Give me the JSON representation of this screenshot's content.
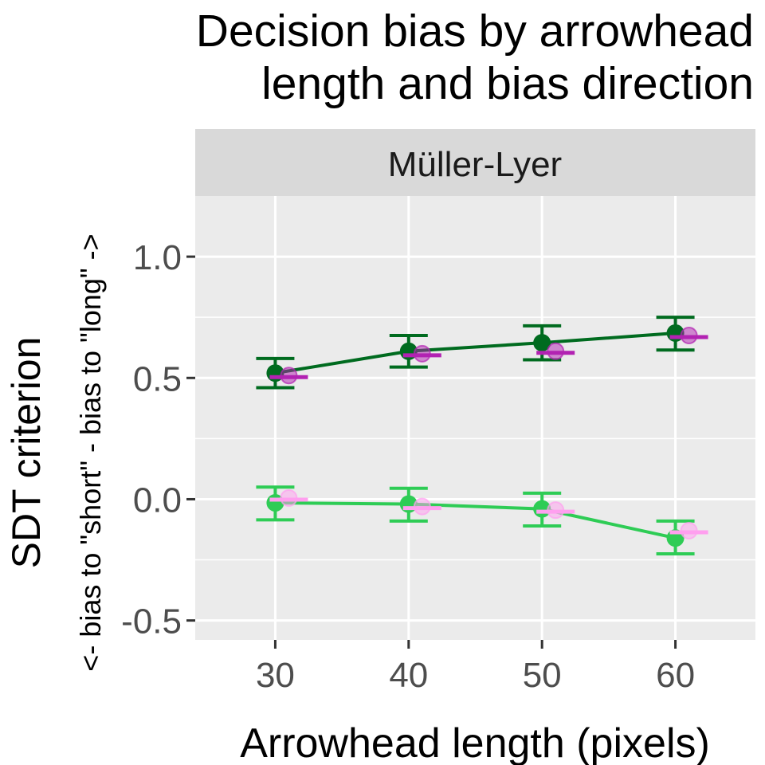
{
  "chart_data": {
    "type": "line",
    "title": [
      "Decision bias by arrowhead",
      "length and bias direction"
    ],
    "facet_label": "Müller-Lyer",
    "xlabel": "Arrowhead length (pixels)",
    "ylabel": "SDT criterion",
    "ylabel_sub": "<- bias to \"short\" - bias to \"long\" ->",
    "x": [
      30,
      40,
      50,
      60
    ],
    "x_ticks": [
      "30",
      "40",
      "50",
      "60"
    ],
    "y_ticks": [
      1.0,
      0.5,
      0.0,
      -0.5
    ],
    "y_tick_labels": [
      "1.0",
      "0.5",
      "0.0",
      "-0.5"
    ],
    "xlim": [
      24,
      66
    ],
    "ylim": [
      -0.58,
      1.25
    ],
    "grid": true,
    "colors": {
      "panel_bg": "#ebebeb",
      "strip_bg": "#d9d9d9",
      "grid": "#ffffff",
      "axis_tick": "#333333"
    },
    "series": [
      {
        "values": [
          0.52,
          0.61,
          0.645,
          0.685
        ],
        "error_low": [
          0.46,
          0.545,
          0.575,
          0.615
        ],
        "error_high": [
          0.58,
          0.675,
          0.715,
          0.75
        ],
        "color": "#006b1f",
        "style": "observed"
      },
      {
        "values": [
          -0.015,
          -0.02,
          -0.04,
          -0.16
        ],
        "error_low": [
          -0.085,
          -0.09,
          -0.11,
          -0.225
        ],
        "error_high": [
          0.05,
          0.045,
          0.025,
          -0.09
        ],
        "color": "#2ecc55",
        "style": "observed"
      },
      {
        "values": [
          0.51,
          0.6,
          0.61,
          0.675
        ],
        "color": "#b222b2",
        "style": "predicted"
      },
      {
        "values": [
          0.005,
          -0.03,
          -0.045,
          -0.13
        ],
        "color": "#ff9fef",
        "style": "predicted"
      }
    ]
  }
}
